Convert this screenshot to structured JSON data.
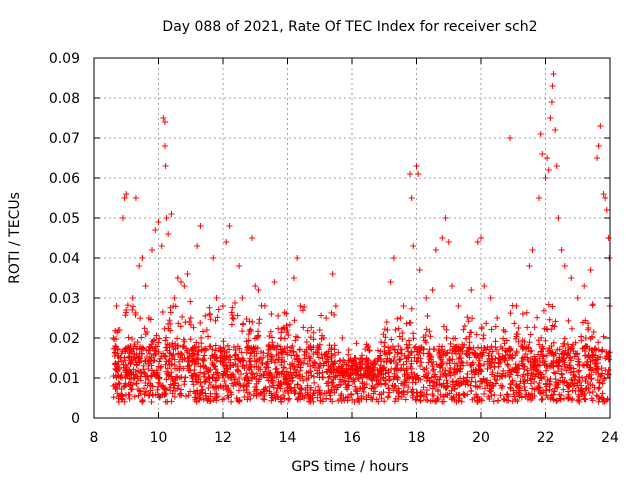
{
  "chart_data": {
    "type": "scatter",
    "title": "Day 088 of 2021, Rate Of TEC Index for receiver sch2",
    "xlabel": "GPS time / hours",
    "ylabel": "ROTI / TECUs",
    "xlim": [
      8,
      24
    ],
    "ylim": [
      0,
      0.09
    ],
    "xticks": [
      "8",
      "10",
      "12",
      "14",
      "16",
      "18",
      "20",
      "22",
      "24"
    ],
    "yticks": [
      "0",
      "0.01",
      "0.02",
      "0.03",
      "0.04",
      "0.05",
      "0.06",
      "0.07",
      "0.08",
      "0.09"
    ],
    "grid": true,
    "marker": "plus",
    "color": "#ff0000",
    "series": [
      {
        "name": "ROTI",
        "points": [
          [
            8.6,
            0.008
          ],
          [
            8.6,
            0.02
          ],
          [
            8.7,
            0.028
          ],
          [
            8.7,
            0.012
          ],
          [
            8.8,
            0.022
          ],
          [
            8.9,
            0.05
          ],
          [
            8.95,
            0.055
          ],
          [
            9.0,
            0.056
          ],
          [
            9.0,
            0.027
          ],
          [
            9.1,
            0.015
          ],
          [
            9.2,
            0.03
          ],
          [
            9.3,
            0.055
          ],
          [
            9.4,
            0.038
          ],
          [
            9.5,
            0.04
          ],
          [
            9.6,
            0.033
          ],
          [
            9.7,
            0.025
          ],
          [
            9.8,
            0.042
          ],
          [
            9.9,
            0.047
          ],
          [
            10.0,
            0.049
          ],
          [
            10.1,
            0.043
          ],
          [
            10.15,
            0.075
          ],
          [
            10.2,
            0.074
          ],
          [
            10.2,
            0.068
          ],
          [
            10.22,
            0.063
          ],
          [
            10.25,
            0.05
          ],
          [
            10.3,
            0.046
          ],
          [
            10.4,
            0.051
          ],
          [
            10.5,
            0.03
          ],
          [
            10.6,
            0.035
          ],
          [
            10.7,
            0.034
          ],
          [
            10.8,
            0.033
          ],
          [
            10.9,
            0.036
          ],
          [
            11.0,
            0.025
          ],
          [
            11.2,
            0.043
          ],
          [
            11.3,
            0.048
          ],
          [
            11.5,
            0.022
          ],
          [
            11.6,
            0.026
          ],
          [
            11.7,
            0.04
          ],
          [
            11.8,
            0.03
          ],
          [
            12.0,
            0.028
          ],
          [
            12.1,
            0.044
          ],
          [
            12.2,
            0.048
          ],
          [
            12.3,
            0.025
          ],
          [
            12.5,
            0.038
          ],
          [
            12.6,
            0.03
          ],
          [
            12.8,
            0.021
          ],
          [
            12.9,
            0.045
          ],
          [
            13.0,
            0.033
          ],
          [
            13.1,
            0.032
          ],
          [
            13.3,
            0.028
          ],
          [
            13.5,
            0.026
          ],
          [
            13.6,
            0.034
          ],
          [
            13.8,
            0.02
          ],
          [
            14.0,
            0.022
          ],
          [
            14.2,
            0.035
          ],
          [
            14.3,
            0.04
          ],
          [
            14.4,
            0.028
          ],
          [
            14.6,
            0.019
          ],
          [
            14.8,
            0.016
          ],
          [
            15.0,
            0.022
          ],
          [
            15.2,
            0.025
          ],
          [
            15.4,
            0.036
          ],
          [
            15.5,
            0.028
          ],
          [
            15.7,
            0.02
          ],
          [
            15.9,
            0.017
          ],
          [
            16.1,
            0.012
          ],
          [
            16.3,
            0.015
          ],
          [
            16.5,
            0.018
          ],
          [
            16.7,
            0.014
          ],
          [
            16.9,
            0.019
          ],
          [
            17.1,
            0.022
          ],
          [
            17.2,
            0.034
          ],
          [
            17.3,
            0.04
          ],
          [
            17.5,
            0.025
          ],
          [
            17.6,
            0.028
          ],
          [
            17.8,
            0.061
          ],
          [
            17.85,
            0.055
          ],
          [
            17.9,
            0.043
          ],
          [
            18.0,
            0.063
          ],
          [
            18.05,
            0.061
          ],
          [
            18.1,
            0.037
          ],
          [
            18.3,
            0.03
          ],
          [
            18.5,
            0.032
          ],
          [
            18.6,
            0.042
          ],
          [
            18.8,
            0.045
          ],
          [
            18.9,
            0.05
          ],
          [
            19.0,
            0.044
          ],
          [
            19.1,
            0.033
          ],
          [
            19.3,
            0.028
          ],
          [
            19.5,
            0.023
          ],
          [
            19.7,
            0.032
          ],
          [
            19.9,
            0.044
          ],
          [
            20.0,
            0.045
          ],
          [
            20.1,
            0.033
          ],
          [
            20.3,
            0.03
          ],
          [
            20.5,
            0.025
          ],
          [
            20.7,
            0.022
          ],
          [
            20.9,
            0.07
          ],
          [
            21.1,
            0.028
          ],
          [
            21.3,
            0.026
          ],
          [
            21.5,
            0.038
          ],
          [
            21.6,
            0.042
          ],
          [
            21.8,
            0.055
          ],
          [
            21.85,
            0.071
          ],
          [
            21.9,
            0.066
          ],
          [
            22.0,
            0.06
          ],
          [
            22.05,
            0.065
          ],
          [
            22.1,
            0.062
          ],
          [
            22.15,
            0.075
          ],
          [
            22.2,
            0.079
          ],
          [
            22.22,
            0.083
          ],
          [
            22.25,
            0.086
          ],
          [
            22.3,
            0.072
          ],
          [
            22.35,
            0.063
          ],
          [
            22.4,
            0.05
          ],
          [
            22.5,
            0.042
          ],
          [
            22.6,
            0.038
          ],
          [
            22.8,
            0.035
          ],
          [
            23.0,
            0.03
          ],
          [
            23.2,
            0.033
          ],
          [
            23.4,
            0.037
          ],
          [
            23.6,
            0.065
          ],
          [
            23.65,
            0.068
          ],
          [
            23.7,
            0.073
          ],
          [
            23.8,
            0.056
          ],
          [
            23.85,
            0.055
          ],
          [
            23.9,
            0.052
          ],
          [
            23.95,
            0.045
          ],
          [
            23.98,
            0.04
          ],
          [
            23.99,
            0.028
          ]
        ]
      }
    ]
  }
}
